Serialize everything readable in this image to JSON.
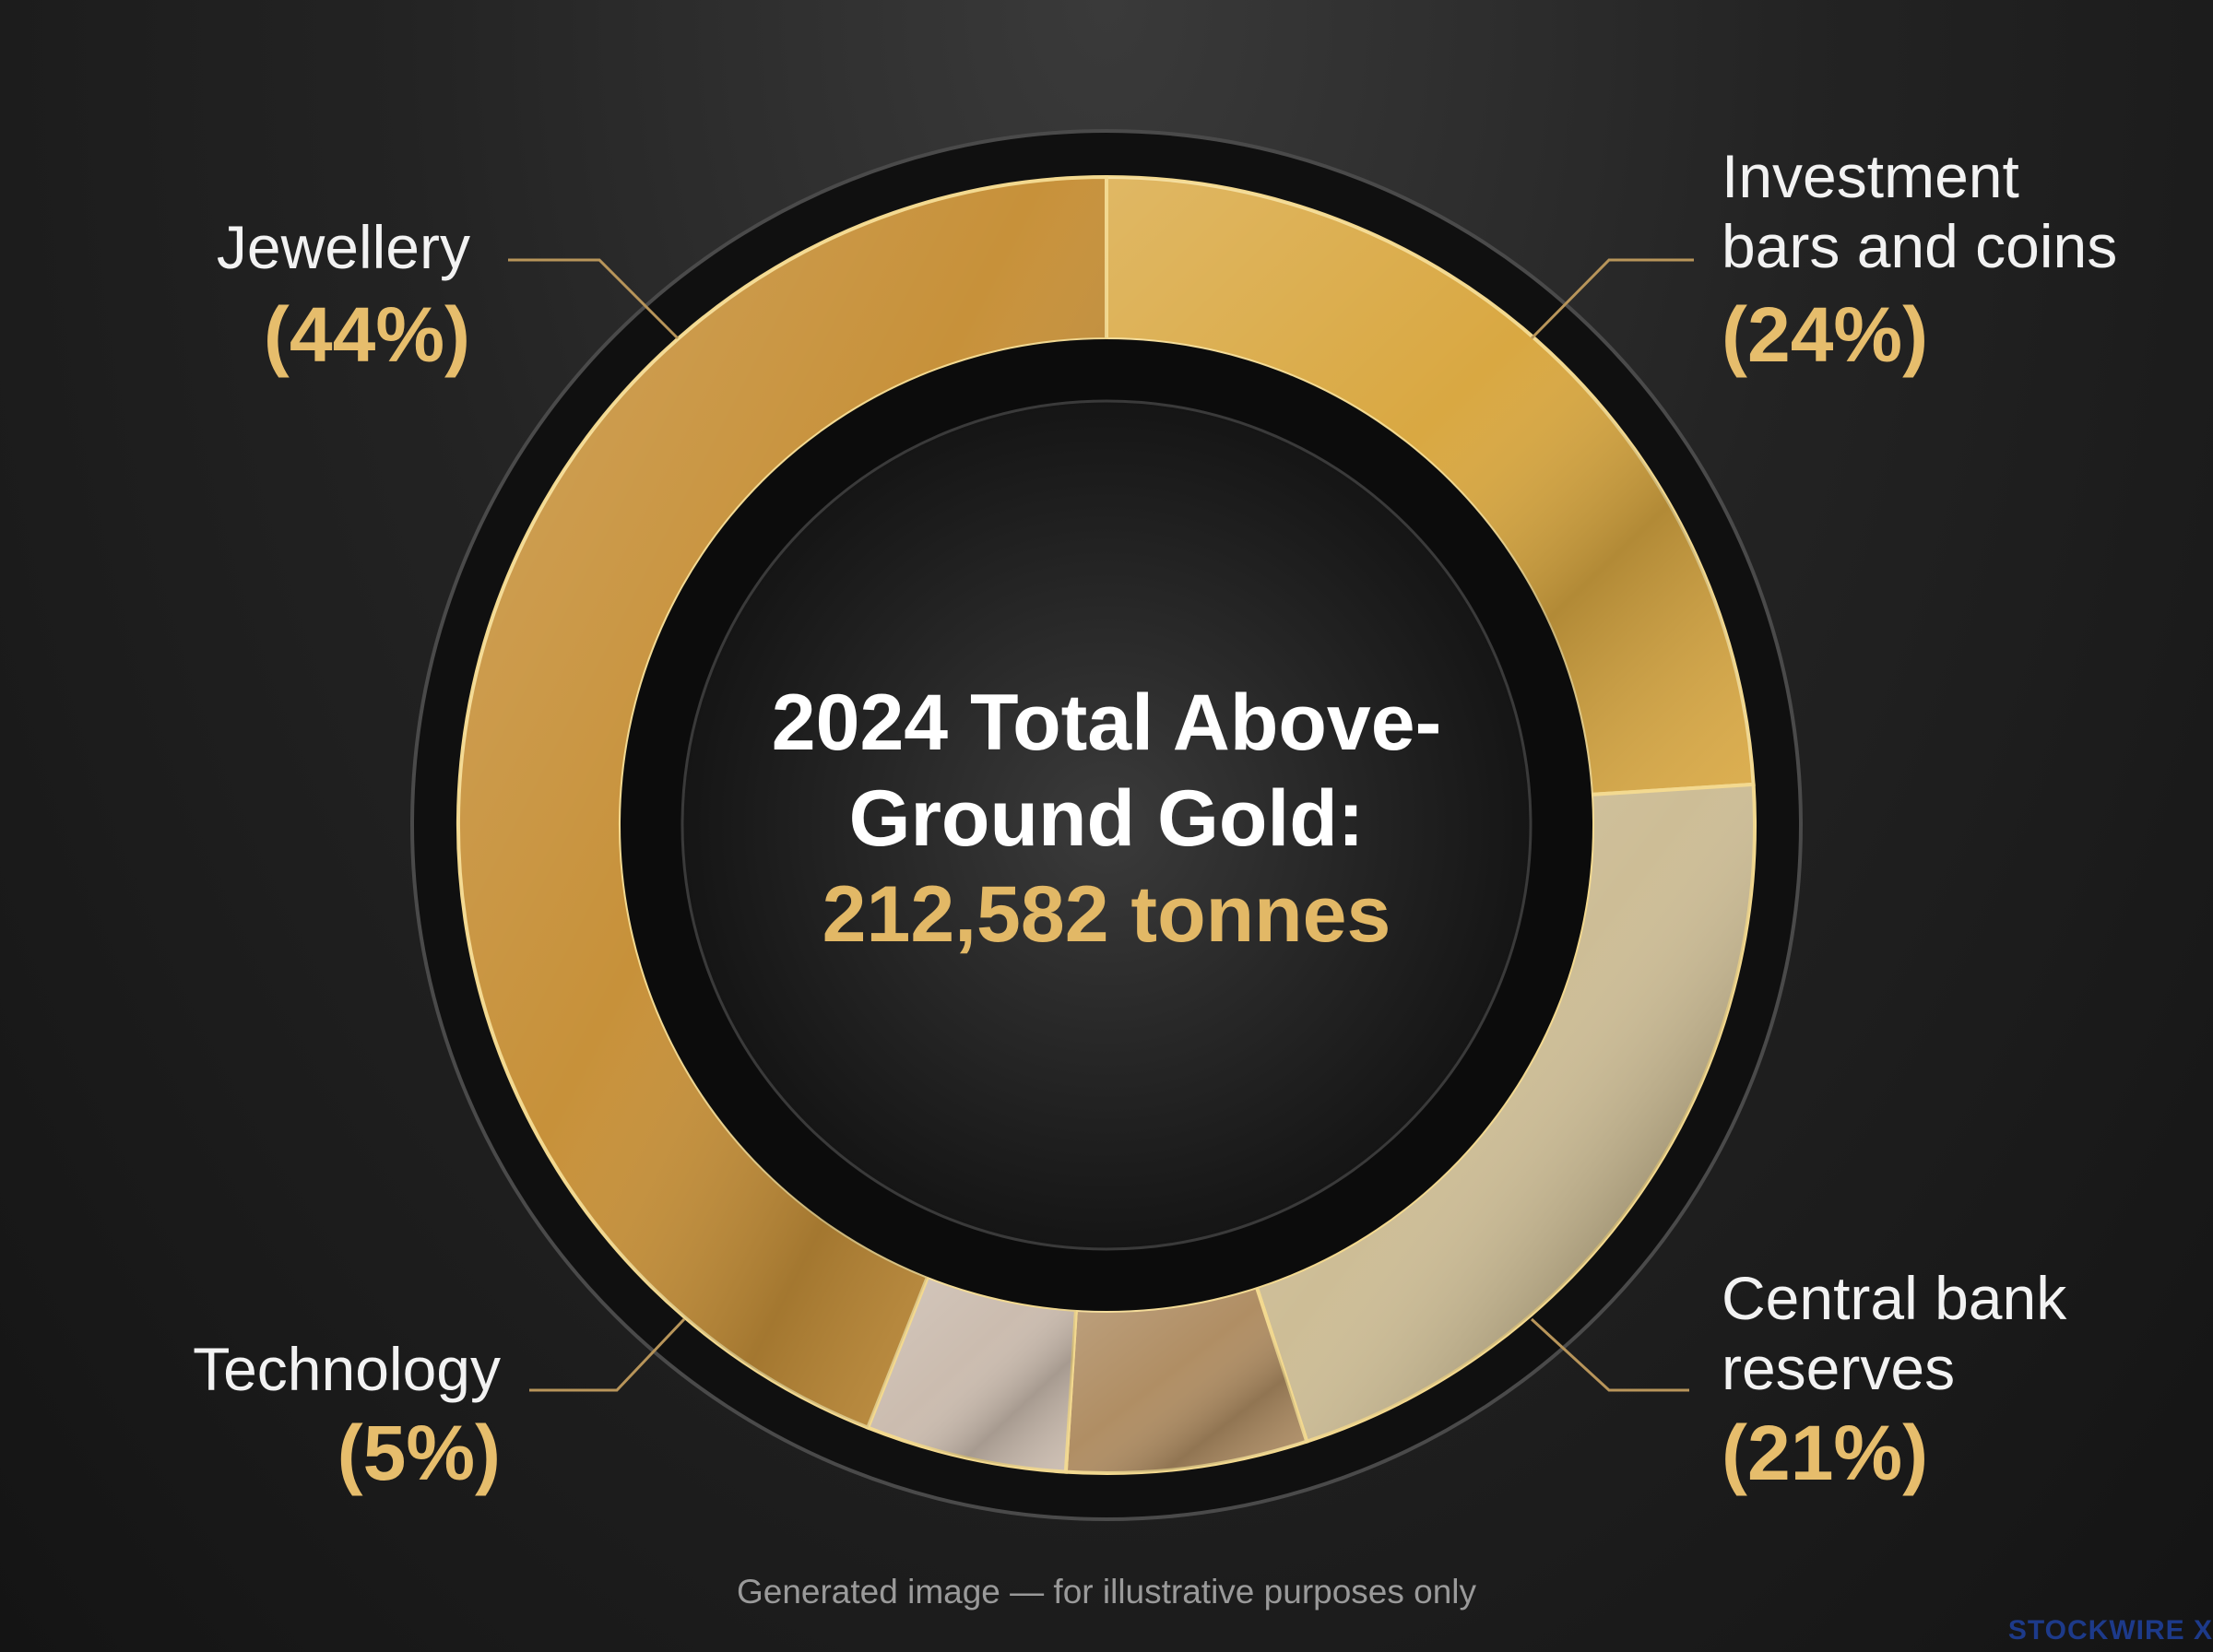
{
  "chart_data": {
    "type": "pie",
    "center_title": "2024 Total Above-Ground Gold:",
    "center_value": "212,582 tonnes",
    "categories": [
      "Investment bars and coins",
      "Central bank reserves",
      null,
      "Technology",
      "Jewellery"
    ],
    "values": [
      24,
      21,
      6,
      5,
      44
    ],
    "value_labels": [
      "(24%)",
      "(21%)",
      null,
      "(5%)",
      "(44%)"
    ],
    "colors": [
      "#d9a842",
      "#cdbd96",
      "#b08e64",
      "#cbbcaf",
      "#c7913a"
    ],
    "footnote": "Generated image — for illustrative purposes only",
    "watermark": "STOCKWIRE X"
  }
}
